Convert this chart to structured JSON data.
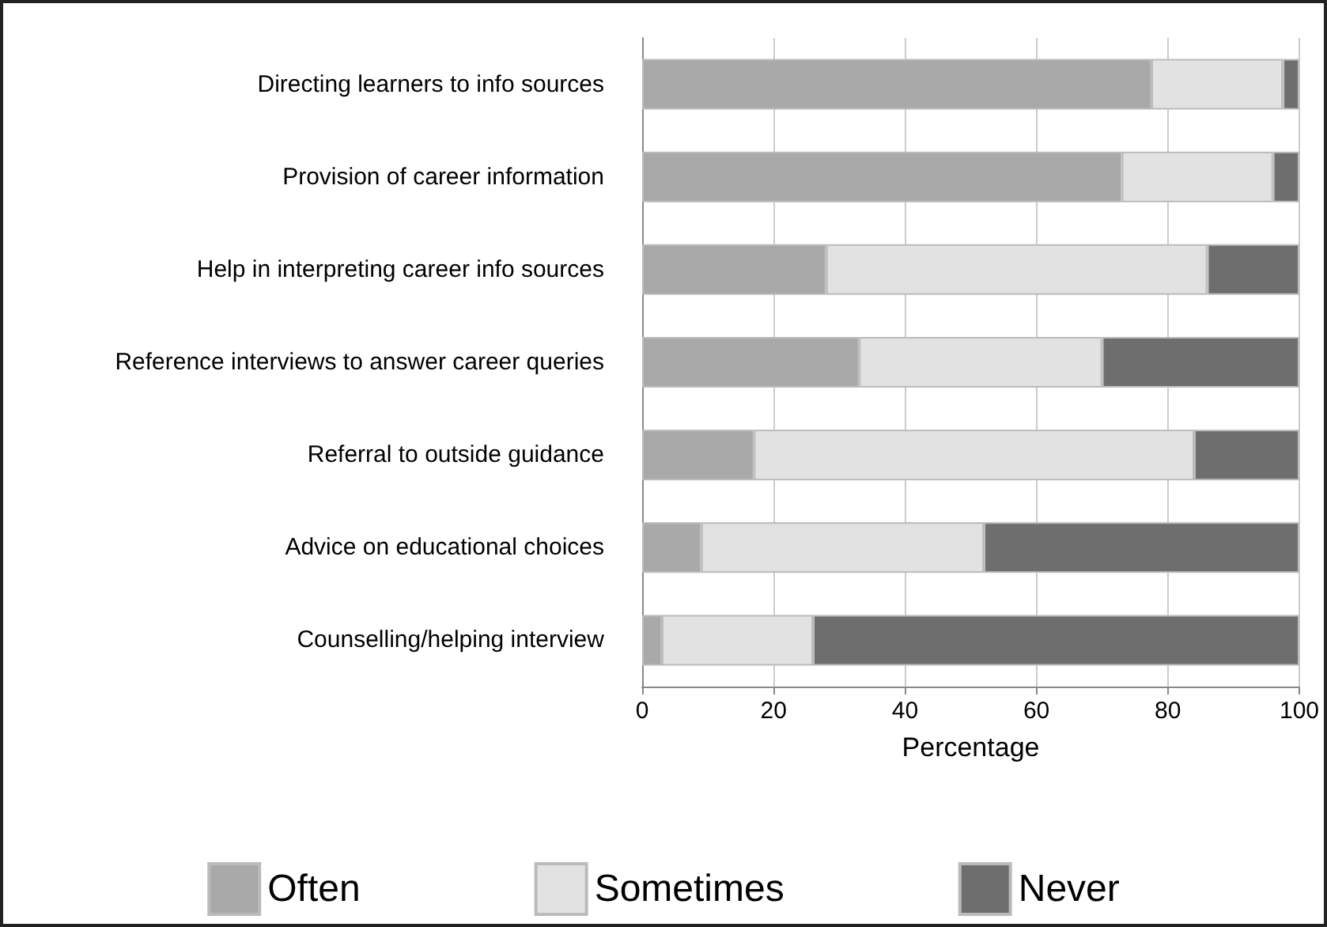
{
  "chart_data": {
    "type": "bar",
    "orientation": "horizontal",
    "stacked": true,
    "categories": [
      "Directing learners to info sources",
      "Provision of career information",
      "Help in interpreting career info sources",
      "Reference interviews to answer career queries",
      "Referral to outside guidance",
      "Advice on educational choices",
      "Counselling/helping interview"
    ],
    "series": [
      {
        "name": "Often",
        "color": "#a9a9a9",
        "values": [
          77.5,
          73,
          28,
          33,
          17,
          9,
          3
        ]
      },
      {
        "name": "Sometimes",
        "color": "#e2e2e2",
        "values": [
          20,
          23,
          58,
          37,
          67,
          43,
          23
        ]
      },
      {
        "name": "Never",
        "color": "#6e6e6e",
        "values": [
          2.5,
          4,
          14,
          30,
          16,
          48,
          74
        ]
      }
    ],
    "xlabel": "Percentage",
    "xlim": [
      0,
      100
    ],
    "xticks": [
      0,
      20,
      40,
      60,
      80,
      100
    ],
    "grid": "x",
    "legend": "bottom"
  }
}
